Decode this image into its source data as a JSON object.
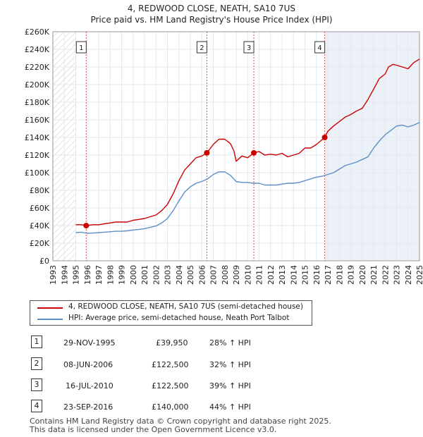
{
  "title_line1": "4, REDWOOD CLOSE, NEATH, SA10 7US",
  "title_line2": "Price paid vs. HM Land Registry's House Price Index (HPI)",
  "legend": {
    "property": "4, REDWOOD CLOSE, NEATH, SA10 7US (semi-detached house)",
    "hpi": "HPI: Average price, semi-detached house, Neath Port Talbot"
  },
  "colors": {
    "property": "#cc0000",
    "hpi": "#5b8fc9",
    "band": "#dde6f3",
    "grid": "#e3e8ef",
    "vline": "#e05050"
  },
  "chart_data": {
    "type": "line",
    "xlabel": "",
    "ylabel": "",
    "x_range": [
      1993,
      2025
    ],
    "ylim": [
      0,
      260000
    ],
    "y_ticks": [
      0,
      20000,
      40000,
      60000,
      80000,
      100000,
      120000,
      140000,
      160000,
      180000,
      200000,
      220000,
      240000,
      260000
    ],
    "y_tick_labels": [
      "£0",
      "£20K",
      "£40K",
      "£60K",
      "£80K",
      "£100K",
      "£120K",
      "£140K",
      "£160K",
      "£180K",
      "£200K",
      "£220K",
      "£240K",
      "£260K"
    ],
    "x_ticks": [
      1993,
      1994,
      1995,
      1996,
      1997,
      1998,
      1999,
      2000,
      2001,
      2002,
      2003,
      2004,
      2005,
      2006,
      2007,
      2008,
      2009,
      2010,
      2011,
      2012,
      2013,
      2014,
      2015,
      2016,
      2017,
      2018,
      2019,
      2020,
      2021,
      2022,
      2023,
      2024,
      2025
    ],
    "x_tick_labels": [
      "1993",
      "1994",
      "1995",
      "1996",
      "1997",
      "1998",
      "1999",
      "2000",
      "2001",
      "2002",
      "2003",
      "2004",
      "2005",
      "2006",
      "2007",
      "2008",
      "2009",
      "2010",
      "2011",
      "2012",
      "2013",
      "2014",
      "2015",
      "2016",
      "2017",
      "2018",
      "2019",
      "2020",
      "2021",
      "2022",
      "2023",
      "2024",
      "2025"
    ],
    "no_data_before": 1995.0,
    "series": [
      {
        "name": "4, REDWOOD CLOSE, NEATH, SA10 7US (semi-detached house)",
        "x": [
          1995.0,
          1995.5,
          1995.91,
          1996.5,
          1997,
          1997.5,
          1998,
          1998.5,
          1999,
          1999.5,
          2000,
          2000.5,
          2001,
          2001.5,
          2002,
          2002.5,
          2003,
          2003.5,
          2004,
          2004.5,
          2005,
          2005.5,
          2006.0,
          2006.44,
          2007,
          2007.5,
          2008,
          2008.5,
          2008.8,
          2009,
          2009.5,
          2010,
          2010.54,
          2011,
          2011.5,
          2012,
          2012.5,
          2013,
          2013.5,
          2014,
          2014.5,
          2015,
          2015.5,
          2016,
          2016.73,
          2017,
          2017.5,
          2018,
          2018.5,
          2019,
          2019.5,
          2020,
          2020.5,
          2021,
          2021.5,
          2022,
          2022.3,
          2022.7,
          2023,
          2023.5,
          2024,
          2024.5,
          2025
        ],
        "values": [
          41000,
          41000,
          39950,
          41000,
          41000,
          42000,
          43000,
          44000,
          44000,
          44000,
          46000,
          47000,
          48000,
          50000,
          52000,
          57000,
          64000,
          76000,
          91000,
          103000,
          110000,
          117000,
          119000,
          122500,
          132000,
          138000,
          138000,
          133000,
          125000,
          113000,
          119000,
          117000,
          122500,
          124000,
          120000,
          121000,
          120000,
          122000,
          118000,
          120000,
          122000,
          128000,
          128000,
          132000,
          140000,
          147000,
          153000,
          158000,
          163000,
          166000,
          170000,
          173000,
          183000,
          195000,
          207000,
          212000,
          220000,
          223000,
          222000,
          220000,
          218000,
          225000,
          229000
        ]
      },
      {
        "name": "HPI: Average price, semi-detached house, Neath Port Talbot",
        "x": [
          1995.0,
          1995.5,
          1996,
          1996.5,
          1997,
          1997.5,
          1998,
          1998.5,
          1999,
          1999.5,
          2000,
          2000.5,
          2001,
          2001.5,
          2002,
          2002.5,
          2003,
          2003.5,
          2004,
          2004.5,
          2005,
          2005.5,
          2006,
          2006.5,
          2007,
          2007.5,
          2008,
          2008.5,
          2009,
          2009.5,
          2010,
          2010.5,
          2011,
          2011.5,
          2012,
          2012.5,
          2013,
          2013.5,
          2014,
          2014.5,
          2015,
          2015.5,
          2016,
          2016.5,
          2017,
          2017.5,
          2018,
          2018.5,
          2019,
          2019.5,
          2020,
          2020.5,
          2021,
          2021.5,
          2022,
          2022.5,
          2023,
          2023.5,
          2024,
          2024.5,
          2025
        ],
        "values": [
          32000,
          32500,
          31200,
          31500,
          32000,
          32500,
          33000,
          33500,
          33500,
          34000,
          35000,
          35500,
          36500,
          38000,
          39500,
          43000,
          48000,
          57000,
          68000,
          78000,
          84000,
          88000,
          90000,
          93000,
          98000,
          101000,
          101000,
          97000,
          90000,
          89000,
          89000,
          88000,
          88000,
          86000,
          86000,
          86000,
          87000,
          88000,
          88000,
          89000,
          91000,
          93000,
          95000,
          96000,
          98000,
          100000,
          104000,
          108000,
          110000,
          112000,
          115000,
          118000,
          128000,
          136000,
          143000,
          148000,
          153000,
          154000,
          152000,
          154000,
          157000
        ]
      }
    ],
    "sales": [
      {
        "label": "1",
        "year": 1995.91,
        "value": 39950
      },
      {
        "label": "2",
        "year": 2006.44,
        "value": 122500
      },
      {
        "label": "3",
        "year": 2010.54,
        "value": 122500
      },
      {
        "label": "4",
        "year": 2016.73,
        "value": 140000
      }
    ]
  },
  "table": [
    {
      "num": "1",
      "date": "29-NOV-1995",
      "price": "£39,950",
      "change": "28% ↑ HPI"
    },
    {
      "num": "2",
      "date": "08-JUN-2006",
      "price": "£122,500",
      "change": "32% ↑ HPI"
    },
    {
      "num": "3",
      "date": "16-JUL-2010",
      "price": "£122,500",
      "change": "39% ↑ HPI"
    },
    {
      "num": "4",
      "date": "23-SEP-2016",
      "price": "£140,000",
      "change": "44% ↑ HPI"
    }
  ],
  "footer_line1": "Contains HM Land Registry data © Crown copyright and database right 2025.",
  "footer_line2": "This data is licensed under the Open Government Licence v3.0."
}
